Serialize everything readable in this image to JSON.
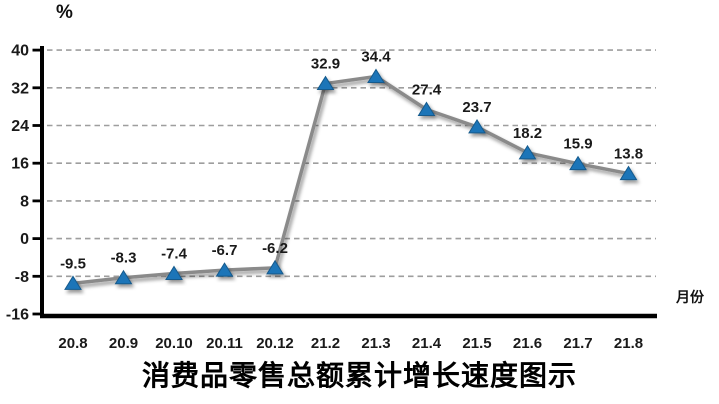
{
  "chart_data": {
    "type": "line",
    "title": "消费品零售总额累计增长速度图示",
    "ylabel": "%",
    "xlabel": "月份",
    "categories": [
      "20.8",
      "20.9",
      "20.10",
      "20.11",
      "20.12",
      "21.2",
      "21.3",
      "21.4",
      "21.5",
      "21.6",
      "21.7",
      "21.8"
    ],
    "values": [
      -9.5,
      -8.3,
      -7.4,
      -6.7,
      -6.2,
      32.9,
      34.4,
      27.4,
      23.7,
      18.2,
      15.9,
      13.8
    ],
    "yticks": [
      40,
      32,
      24,
      16,
      8,
      0,
      -8,
      -16
    ],
    "ylim": [
      -16,
      40
    ],
    "grid": true,
    "legend": false,
    "marker_shape": "triangle",
    "colors": {
      "line": "#8a8a8a",
      "marker_fill": "#1f74b8",
      "marker_stroke": "#135a8c",
      "grid": "#9e9e9e",
      "axis": "#000000",
      "text": "#1a1a1a"
    }
  }
}
